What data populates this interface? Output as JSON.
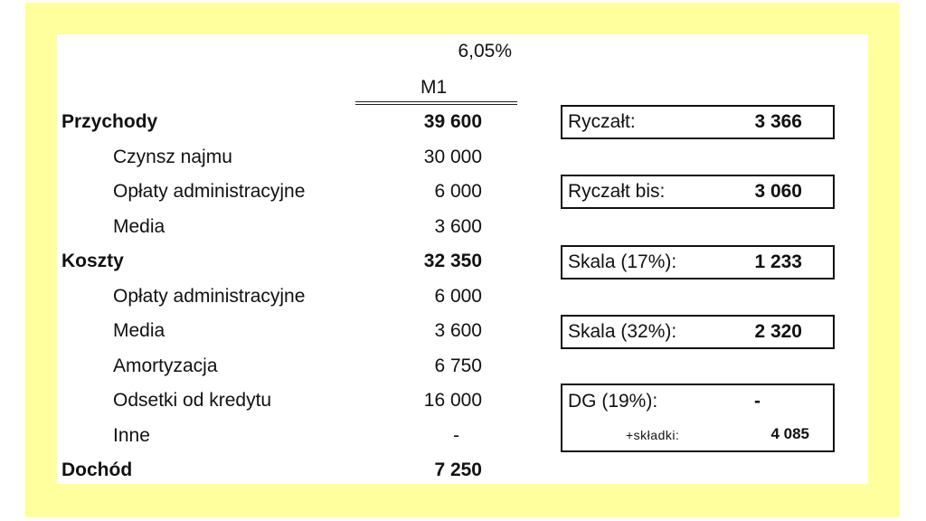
{
  "header": {
    "rate": "6,05%",
    "column": "M1"
  },
  "rows": [
    {
      "label": "Przychody",
      "value": "39 600",
      "bold": true
    },
    {
      "label": "Czynsz najmu",
      "value": "30 000"
    },
    {
      "label": "Opłaty administracyjne",
      "value": "6 000"
    },
    {
      "label": "Media",
      "value": "3 600"
    },
    {
      "label": "Koszty",
      "value": "32 350",
      "bold": true
    },
    {
      "label": "Opłaty administracyjne",
      "value": "6 000"
    },
    {
      "label": "Media",
      "value": "3 600"
    },
    {
      "label": "Amortyzacja",
      "value": "6 750"
    },
    {
      "label": "Odsetki od kredytu",
      "value": "16 000"
    },
    {
      "label": "Inne",
      "value": "-"
    },
    {
      "label": "Dochód",
      "value": "7 250",
      "bold": true
    }
  ],
  "tax_boxes": [
    {
      "label": "Ryczałt:",
      "value": "3 366"
    },
    {
      "label": "Ryczałt bis:",
      "value": "3 060"
    },
    {
      "label": "Skala (17%):",
      "value": "1 233"
    },
    {
      "label": "Skala (32%):",
      "value": "2 320"
    },
    {
      "label": "DG (19%):",
      "value": "-",
      "sub_label": "+składki:",
      "sub_value": "4 085"
    }
  ],
  "colors": {
    "frame": "#ffff9e",
    "sheet": "#ffffff"
  }
}
